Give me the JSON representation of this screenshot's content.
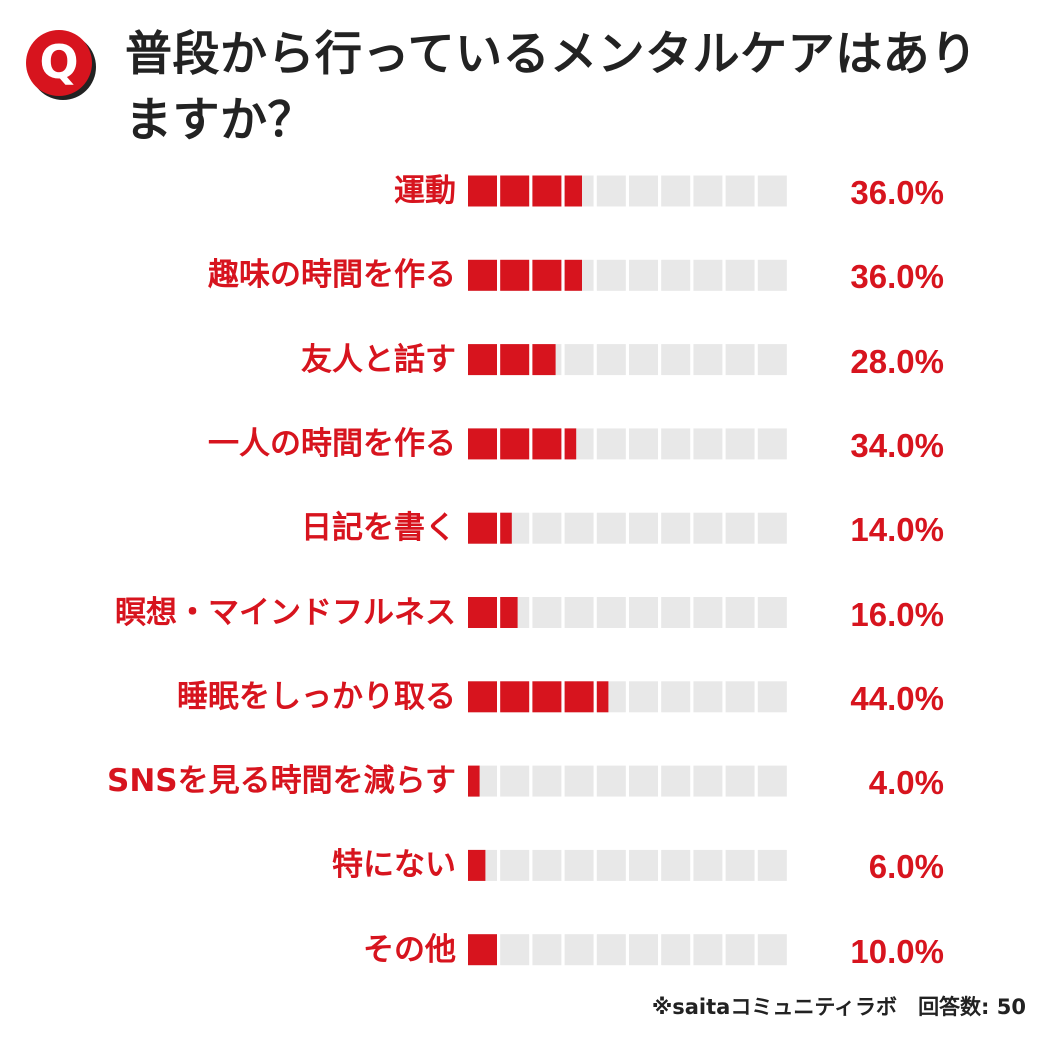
{
  "question_mark": "Q",
  "title": "普段から行っているメンタルケアはありますか？",
  "footer": {
    "source": "※saitaコミュニティラボ",
    "respondents": "回答数: 50"
  },
  "colors": {
    "accent": "#d7141e",
    "bar_empty": "#e8e8e8",
    "title_text": "#222222"
  },
  "chart_data": {
    "type": "bar",
    "orientation": "horizontal",
    "unit_blocks": 10,
    "categories": [
      "運動",
      "趣味の時間を作る",
      "友人と話す",
      "一人の時間を作る",
      "日記を書く",
      "瞑想・マインドフルネス",
      "睡眠をしっかり取る",
      "SNSを見る時間を減らす",
      "特にない",
      "その他"
    ],
    "values": [
      36.0,
      36.0,
      28.0,
      34.0,
      14.0,
      16.0,
      44.0,
      4.0,
      6.0,
      10.0
    ],
    "value_labels": [
      "36.0%",
      "36.0%",
      "28.0%",
      "34.0%",
      "14.0%",
      "16.0%",
      "44.0%",
      "4.0%",
      "6.0%",
      "10.0%"
    ],
    "xlim": [
      0,
      100
    ]
  }
}
